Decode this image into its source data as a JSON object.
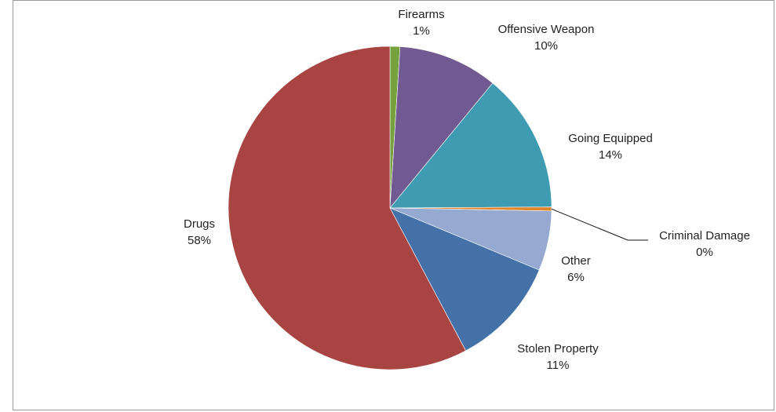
{
  "chart_data": {
    "type": "pie",
    "title": "",
    "slices": [
      {
        "label": "Firearms",
        "value": 1,
        "value_label": "1%",
        "color": "#77a13e"
      },
      {
        "label": "Offensive Weapon",
        "value": 10,
        "value_label": "10%",
        "color": "#715a91"
      },
      {
        "label": "Going Equipped",
        "value": 14,
        "value_label": "14%",
        "color": "#3f9bb1"
      },
      {
        "label": "Criminal Damage",
        "value": 0.4,
        "value_label": "0%",
        "color": "#e0862f"
      },
      {
        "label": "Other",
        "value": 6,
        "value_label": "6%",
        "color": "#96a9d0"
      },
      {
        "label": "Stolen Property",
        "value": 11,
        "value_label": "11%",
        "color": "#4472a8"
      },
      {
        "label": "Drugs",
        "value": 58,
        "value_label": "58%",
        "color": "#a84543"
      }
    ],
    "start_angle_deg": 0,
    "direction": "clockwise",
    "legend": "none"
  }
}
